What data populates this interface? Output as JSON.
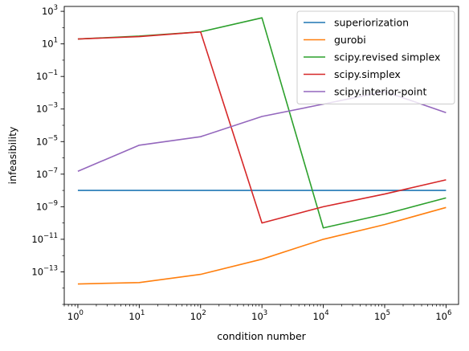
{
  "chart_data": {
    "type": "line",
    "xscale": "log",
    "yscale": "log",
    "xlabel": "condition number",
    "ylabel": "infeasibility",
    "xlim": [
      0.6,
      1600000
    ],
    "ylim": [
      1e-15,
      2000
    ],
    "x": [
      1,
      10,
      100,
      1000,
      10000,
      100000,
      1000000
    ],
    "x_tick_exponents": [
      "0",
      "1",
      "2",
      "3",
      "4",
      "5",
      "6"
    ],
    "y_tick_exponents": [
      "−13",
      "−11",
      "−9",
      "−7",
      "−5",
      "−3",
      "−1",
      "1",
      "3"
    ],
    "y_tick_values": [
      1e-13,
      1e-11,
      1e-09,
      1e-07,
      1e-05,
      0.001,
      0.1,
      10,
      1000
    ],
    "tick_base": "10",
    "legend_position": "top-right",
    "grid": false,
    "series": [
      {
        "name": "superiorization",
        "color": "#1f77b4",
        "values": [
          1e-08,
          1e-08,
          1e-08,
          1e-08,
          1e-08,
          1e-08,
          1e-08
        ]
      },
      {
        "name": "gurobi",
        "color": "#ff7f0e",
        "values": [
          1.8e-14,
          2.2e-14,
          7e-14,
          6e-13,
          1e-11,
          8e-11,
          9e-10
        ]
      },
      {
        "name": "scipy.revised simplex",
        "color": "#2ca02c",
        "values": [
          20,
          30,
          55,
          400,
          5e-11,
          3.5e-10,
          3.5e-09
        ]
      },
      {
        "name": "scipy.simplex",
        "color": "#d62728",
        "values": [
          20,
          28,
          55,
          1e-10,
          1e-09,
          6e-09,
          4.5e-08
        ]
      },
      {
        "name": "scipy.interior-point",
        "color": "#9467bd",
        "values": [
          1.5e-07,
          6e-06,
          2e-05,
          0.00035,
          0.002,
          0.012,
          0.0006
        ]
      }
    ]
  }
}
